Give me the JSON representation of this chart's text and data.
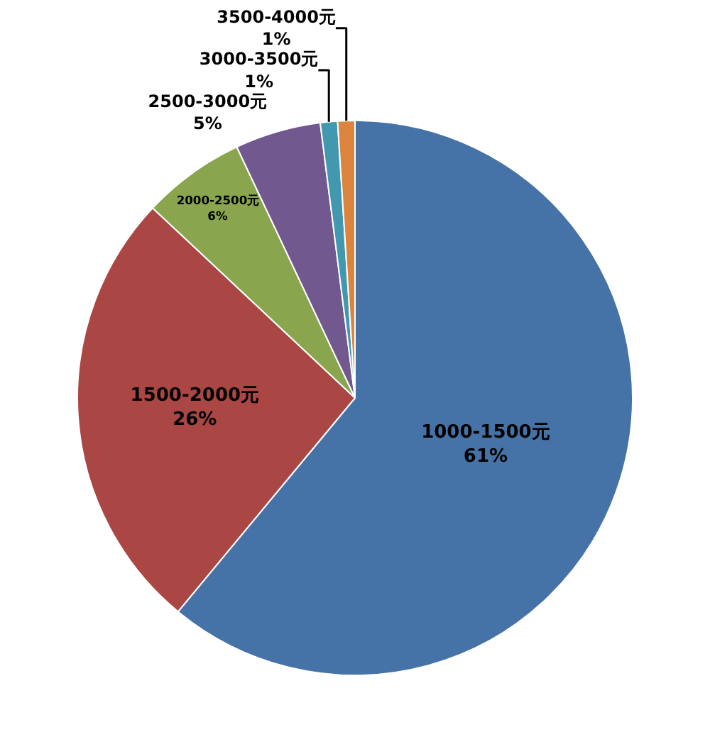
{
  "chart_data": {
    "type": "pie",
    "categories": [
      "1000-1500元",
      "1500-2000元",
      "2000-2500元",
      "2500-3000元",
      "3000-3500元",
      "3500-4000元"
    ],
    "values": [
      61,
      26,
      6,
      5,
      1,
      1
    ],
    "value_labels": [
      "61%",
      "26%",
      "6%",
      "5%",
      "1%",
      "1%"
    ],
    "colors": [
      "#4572a7",
      "#aa4643",
      "#89a54e",
      "#71588f",
      "#4198af",
      "#db843d"
    ],
    "legend": false
  }
}
